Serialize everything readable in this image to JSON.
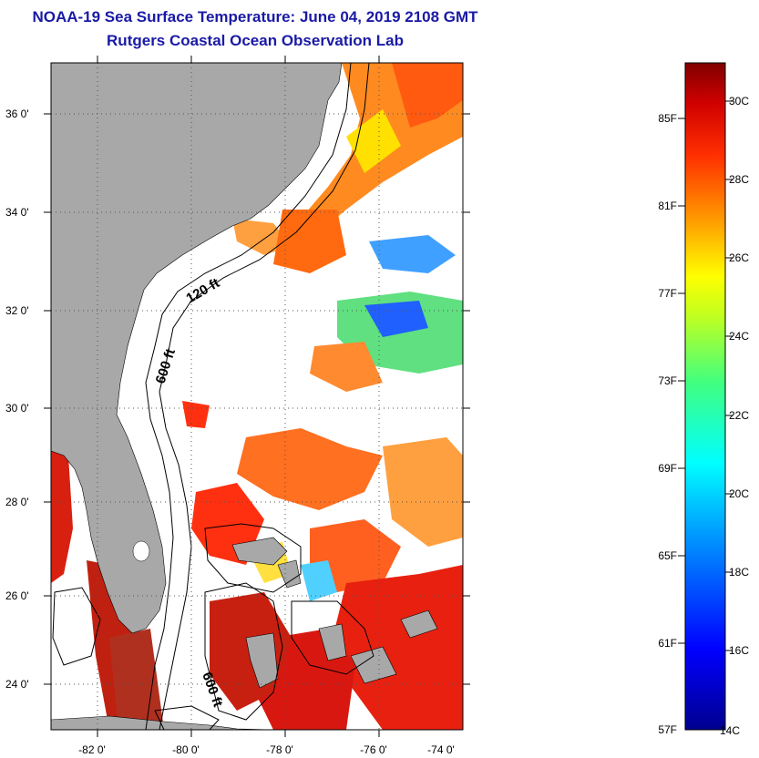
{
  "title": {
    "line1": "NOAA-19 Sea Surface Temperature:  June 04, 2019 2108 GMT",
    "line2": "Rutgers Coastal Ocean Observation Lab"
  },
  "map": {
    "lon_ticks": [
      "-82 0'",
      "-80 0'",
      "-78 0'",
      "-76 0'",
      "-74 0'"
    ],
    "lat_ticks": [
      "36 0'",
      "34 0'",
      "32 0'",
      "30 0'",
      "28 0'",
      "26 0'",
      "24 0'"
    ],
    "contour_labels": [
      "120 ft",
      "600 ft",
      "600 ft"
    ],
    "colors": {
      "land": "#a8a8a8",
      "cloud": "#ffffff",
      "contour": "#000000"
    }
  },
  "colorbar": {
    "fahrenheit_labels": [
      "85F",
      "81F",
      "77F",
      "73F",
      "69F",
      "65F",
      "61F",
      "57F"
    ],
    "celsius_labels": [
      "30C",
      "28C",
      "26C",
      "24C",
      "22C",
      "20C",
      "18C",
      "16C",
      "14C"
    ],
    "range_c": [
      14,
      31
    ]
  }
}
